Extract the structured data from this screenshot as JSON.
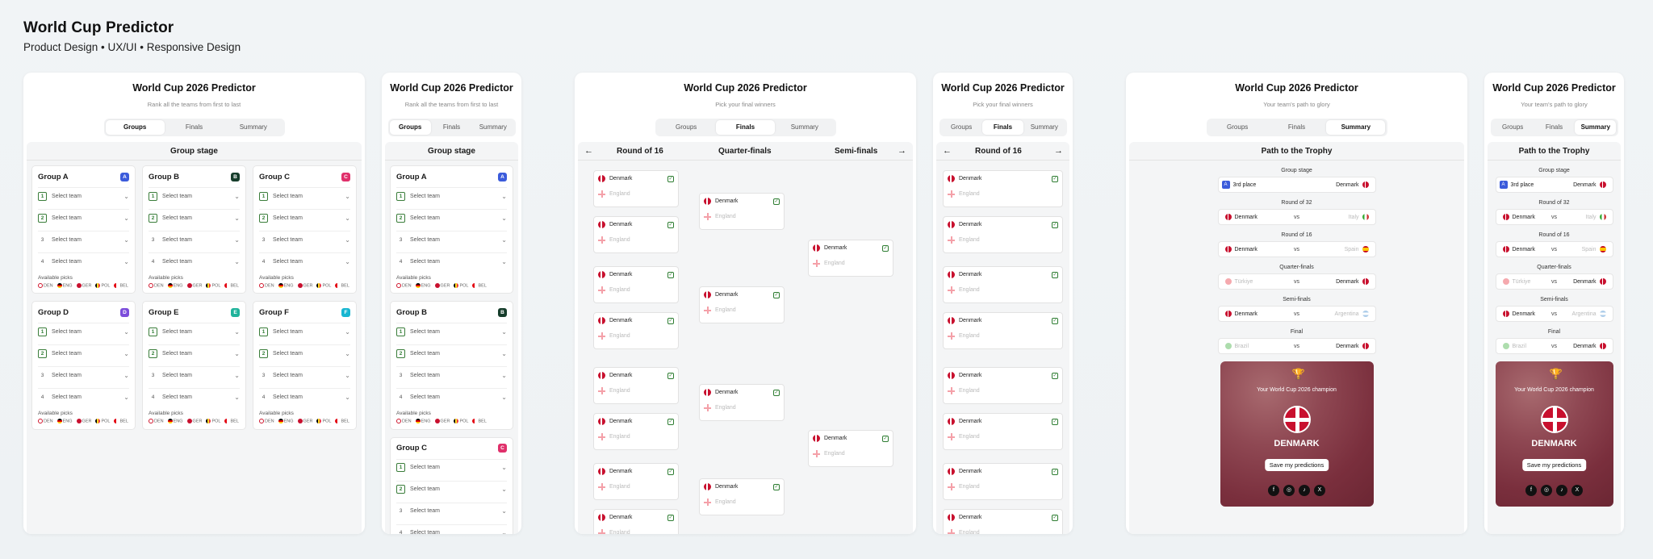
{
  "header": {
    "title": "World Cup Predictor",
    "subtitle": "Product Design • UX/UI • Responsive Design"
  },
  "app": {
    "title": "World Cup 2026 Predictor",
    "tabs": [
      "Groups",
      "Finals",
      "Summary"
    ]
  },
  "groups_view": {
    "subtitle": "Rank all the teams from first to last",
    "section": "Group stage",
    "groups": [
      {
        "name": "Group A",
        "badge": "A",
        "color": "#3b5bdb"
      },
      {
        "name": "Group B",
        "badge": "B",
        "color": "#163d2b"
      },
      {
        "name": "Group C",
        "badge": "C",
        "color": "#e0306b"
      },
      {
        "name": "Group D",
        "badge": "D",
        "color": "#7c4ddb"
      },
      {
        "name": "Group E",
        "badge": "E",
        "color": "#20b39b"
      },
      {
        "name": "Group F",
        "badge": "F",
        "color": "#18b6d1"
      }
    ],
    "select_label": "Select team",
    "available_label": "Available picks",
    "picks": [
      "DEN",
      "ENG",
      "GER",
      "POL",
      "BEL"
    ]
  },
  "finals_view": {
    "subtitle": "Pick your final winners",
    "rounds": [
      "Round of 16",
      "Quarter-finals",
      "Semi-finals"
    ],
    "winner": "Denmark",
    "loser": "England"
  },
  "summary_view": {
    "subtitle": "Your team's path to glory",
    "section": "Path to the Trophy",
    "path": [
      {
        "stage": "Group stage",
        "left": "3rd place",
        "vs": "",
        "right": "Denmark"
      },
      {
        "stage": "Round of 32",
        "left": "Denmark",
        "vs": "vs",
        "right": "Italy"
      },
      {
        "stage": "Round of 16",
        "left": "Denmark",
        "vs": "vs",
        "right": "Spain"
      },
      {
        "stage": "Quarter-finals",
        "left": "Türkiye",
        "vs": "vs",
        "right": "Denmark"
      },
      {
        "stage": "Semi-finals",
        "left": "Denmark",
        "vs": "vs",
        "right": "Argentina"
      },
      {
        "stage": "Final",
        "left": "Brazil",
        "vs": "vs",
        "right": "Denmark"
      }
    ],
    "champion_caption": "Your World Cup 2026 champion",
    "champion": "DENMARK",
    "save_label": "Save my predictions",
    "socials": [
      "facebook-icon",
      "instagram-icon",
      "tiktok-icon",
      "x-icon"
    ]
  }
}
